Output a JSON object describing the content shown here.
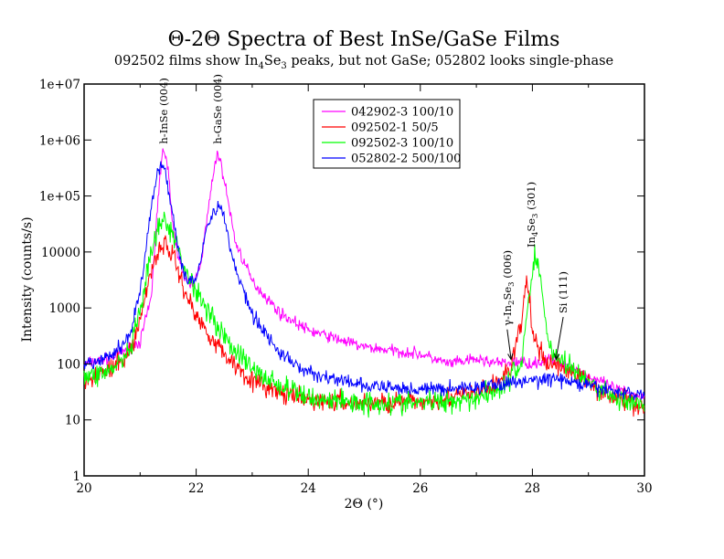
{
  "chart_data": {
    "type": "line",
    "title": "Θ-2Θ Spectra of Best InSe/GaSe Films",
    "subtitle": {
      "pre": "092502 films show In",
      "sub1": "4",
      "mid": "Se",
      "sub2": "3",
      "post": " peaks, but not GaSe; 052802 looks single-phase"
    },
    "xlabel": "2Θ (°)",
    "ylabel": "Intensity (counts/s)",
    "xlim": [
      20,
      30
    ],
    "ylim": [
      1,
      10000000
    ],
    "yscale": "log",
    "grid": false,
    "legend_position": "top-center",
    "x_ticks": [
      20,
      22,
      24,
      26,
      28,
      30
    ],
    "x_tick_labels": [
      "20",
      "22",
      "24",
      "26",
      "28",
      "30"
    ],
    "y_ticks": [
      1,
      10,
      100,
      1000,
      10000,
      100000,
      1000000,
      10000000
    ],
    "y_tick_labels": [
      "1",
      "10",
      "100",
      "1000",
      "10000",
      "1e+05",
      "1e+06",
      "1e+07"
    ],
    "series": [
      {
        "name": "042902-3 100/10",
        "color": "#ff00ff",
        "x": [
          20.0,
          20.5,
          21.0,
          21.2,
          21.3,
          21.4,
          21.5,
          21.6,
          21.8,
          21.95,
          22.1,
          22.25,
          22.38,
          22.5,
          22.7,
          23.0,
          23.5,
          24.0,
          25.0,
          26.0,
          26.5,
          27.0,
          27.5,
          27.8,
          28.0,
          28.3,
          28.6,
          29.0,
          29.5,
          30.0
        ],
        "y": [
          100,
          130,
          250,
          1500,
          50000,
          700000,
          300000,
          20000,
          3000,
          2500,
          8000,
          100000,
          650000,
          200000,
          15000,
          3000,
          800,
          400,
          200,
          150,
          100,
          120,
          100,
          110,
          100,
          120,
          100,
          60,
          35,
          25
        ],
        "noise": 0.09
      },
      {
        "name": "092502-1 50/5",
        "color": "#ff0000",
        "x": [
          20.0,
          20.5,
          20.8,
          21.0,
          21.2,
          21.35,
          21.45,
          21.6,
          21.8,
          22.0,
          22.5,
          23.0,
          23.5,
          24.0,
          25.0,
          26.0,
          26.5,
          27.0,
          27.3,
          27.6,
          27.8,
          27.9,
          28.0,
          28.2,
          28.5,
          28.8,
          29.0,
          29.5,
          30.0
        ],
        "y": [
          55,
          80,
          150,
          600,
          5000,
          12000,
          14000,
          8000,
          2000,
          700,
          150,
          50,
          30,
          22,
          20,
          21,
          25,
          30,
          40,
          80,
          500,
          3500,
          400,
          110,
          90,
          65,
          45,
          25,
          18
        ],
        "noise": 0.16
      },
      {
        "name": "092502-3 100/10",
        "color": "#00ff00",
        "x": [
          20.0,
          20.5,
          20.8,
          21.0,
          21.2,
          21.35,
          21.45,
          21.6,
          21.8,
          22.0,
          22.2,
          22.5,
          23.0,
          23.5,
          24.0,
          25.0,
          26.0,
          26.5,
          27.0,
          27.5,
          27.8,
          27.95,
          28.05,
          28.15,
          28.3,
          28.5,
          28.8,
          29.0,
          29.5,
          30.0
        ],
        "y": [
          55,
          80,
          150,
          800,
          10000,
          30000,
          35000,
          18000,
          5000,
          2000,
          1000,
          300,
          80,
          40,
          25,
          20,
          20,
          22,
          25,
          40,
          100,
          2000,
          9000,
          3000,
          200,
          120,
          70,
          45,
          25,
          16
        ],
        "noise": 0.18
      },
      {
        "name": "052802-2 500/100",
        "color": "#0000ff",
        "x": [
          20.0,
          20.5,
          20.8,
          21.0,
          21.2,
          21.3,
          21.42,
          21.55,
          21.7,
          21.85,
          22.0,
          22.2,
          22.4,
          22.5,
          22.7,
          23.0,
          23.5,
          24.0,
          25.0,
          26.0,
          27.0,
          27.5,
          28.0,
          28.3,
          28.6,
          29.0,
          29.5,
          30.0
        ],
        "y": [
          90,
          140,
          300,
          2000,
          60000,
          250000,
          360000,
          80000,
          8000,
          3000,
          3500,
          30000,
          70000,
          40000,
          5000,
          800,
          150,
          70,
          40,
          35,
          38,
          45,
          50,
          55,
          50,
          40,
          32,
          28
        ],
        "noise": 0.11
      }
    ],
    "annotations": [
      {
        "text": "h-InSe (004)",
        "x": 21.42,
        "y": 850000
      },
      {
        "text": "h-GaSe (004)",
        "x": 22.38,
        "y": 850000
      },
      {
        "pre": "γ-In",
        "sub1": "2",
        "mid": "Se",
        "sub2": "3",
        "post": " (006)",
        "x": 27.55,
        "y": 480,
        "arrow_to": [
          27.62,
          120
        ]
      },
      {
        "pre": "In",
        "sub1": "4",
        "mid": "Se",
        "sub2": "3",
        "post": " (301)",
        "x": 27.98,
        "y": 12000
      },
      {
        "text": "Si (111)",
        "x": 28.55,
        "y": 800,
        "arrow_to": [
          28.42,
          120
        ]
      }
    ]
  }
}
